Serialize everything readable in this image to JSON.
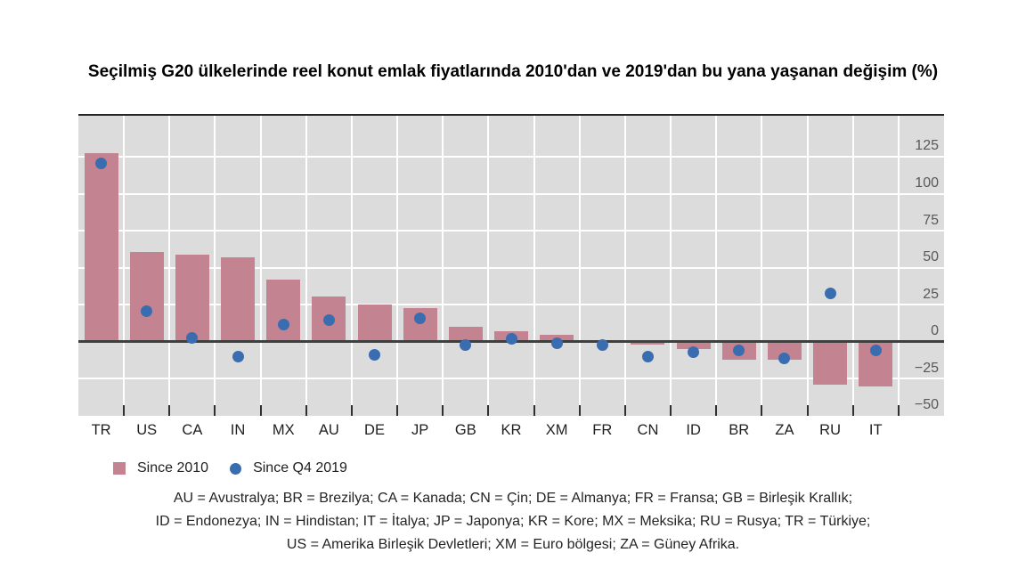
{
  "title": "Seçilmiş G20 ülkelerinde reel konut emlak fiyatlarında 2010'dan ve 2019'dan bu yana yaşanan değişim (%)",
  "chart_data": {
    "type": "bar",
    "categories": [
      "TR",
      "US",
      "CA",
      "IN",
      "MX",
      "AU",
      "DE",
      "JP",
      "GB",
      "KR",
      "XM",
      "FR",
      "CN",
      "ID",
      "BR",
      "ZA",
      "RU",
      "IT"
    ],
    "series": [
      {
        "name": "Since 2010",
        "type": "bar",
        "color": "#c48390",
        "values": [
          128,
          61,
          59,
          57,
          42,
          31,
          25,
          23,
          10,
          7,
          5,
          1,
          -2,
          -5,
          -12,
          -12,
          -29,
          -30
        ]
      },
      {
        "name": "Since Q4 2019",
        "type": "scatter",
        "color": "#3a6cb0",
        "values": [
          121,
          21,
          3,
          -10,
          12,
          15,
          -9,
          16,
          -2,
          2,
          -1,
          -2,
          -10,
          -7,
          -6,
          -11,
          33,
          -6
        ]
      }
    ],
    "ylim": [
      -50,
      153
    ],
    "yticks": [
      125,
      100,
      75,
      50,
      25,
      0,
      -25,
      -50
    ],
    "grid": true,
    "plot_bg": "#dcdcdc",
    "gridline_color": "#ffffff",
    "zero_line_color": "#3f3f3f",
    "legend_position": "bottom-left"
  },
  "legend": {
    "items": [
      {
        "label": "Since 2010",
        "marker": "square",
        "color": "#c48390"
      },
      {
        "label": "Since Q4 2019",
        "marker": "dot",
        "color": "#3a6cb0"
      }
    ]
  },
  "footnote": {
    "lines": [
      "AU = Avustralya; BR = Brezilya; CA = Kanada; CN = Çin; DE = Almanya; FR = Fransa; GB = Birleşik Krallık;",
      "ID = Endonezya; IN = Hindistan; IT = İtalya; JP = Japonya; KR = Kore; MX = Meksika; RU = Rusya; TR = Türkiye;",
      "US = Amerika Birleşik Devletleri; XM = Euro bölgesi; ZA = Güney Afrika."
    ]
  }
}
